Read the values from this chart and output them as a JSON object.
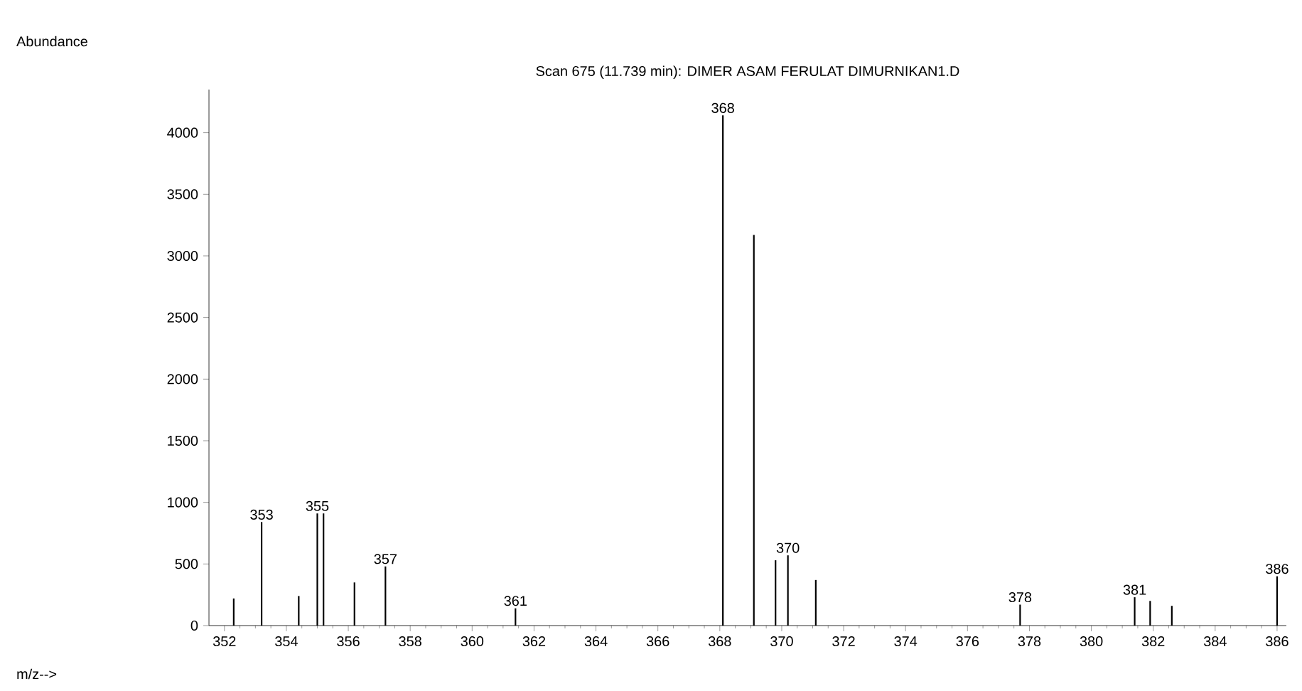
{
  "chart_data": {
    "type": "bar",
    "title": "Scan 675 (11.739 min): DIMER ASAM FERULAT DIMURNIKAN1.D",
    "color": "#000000",
    "x": [
      352.3,
      353.2,
      354.4,
      355.0,
      355.2,
      356.2,
      357.2,
      361.4,
      368.1,
      369.1,
      369.8,
      370.2,
      371.1,
      377.7,
      381.4,
      381.9,
      382.6,
      386.0
    ],
    "values": [
      220,
      840,
      240,
      910,
      910,
      350,
      480,
      140,
      4140,
      3170,
      530,
      570,
      370,
      170,
      230,
      200,
      160,
      400
    ],
    "xlim": [
      351.5,
      386.3
    ],
    "ylim": [
      0,
      4350
    ],
    "xticks": [
      352,
      354,
      356,
      358,
      360,
      362,
      364,
      366,
      368,
      370,
      372,
      374,
      376,
      378,
      380,
      382,
      384,
      386
    ],
    "yticks": [
      0,
      500,
      1000,
      1500,
      2000,
      2500,
      3000,
      3500,
      4000
    ],
    "annotations": [
      "Abundance",
      "m/z-->",
      {
        "text": "353",
        "x": 353.2,
        "y": 840
      },
      {
        "text": "355",
        "x": 355.0,
        "y": 910
      },
      {
        "text": "357",
        "x": 357.2,
        "y": 480
      },
      {
        "text": "361",
        "x": 361.4,
        "y": 140
      },
      {
        "text": "368",
        "x": 368.1,
        "y": 4140
      },
      {
        "text": "370",
        "x": 370.2,
        "y": 570
      },
      {
        "text": "378",
        "x": 377.7,
        "y": 170
      },
      {
        "text": "381",
        "x": 381.4,
        "y": 230
      },
      {
        "text": "386",
        "x": 386.0,
        "y": 400
      }
    ]
  }
}
